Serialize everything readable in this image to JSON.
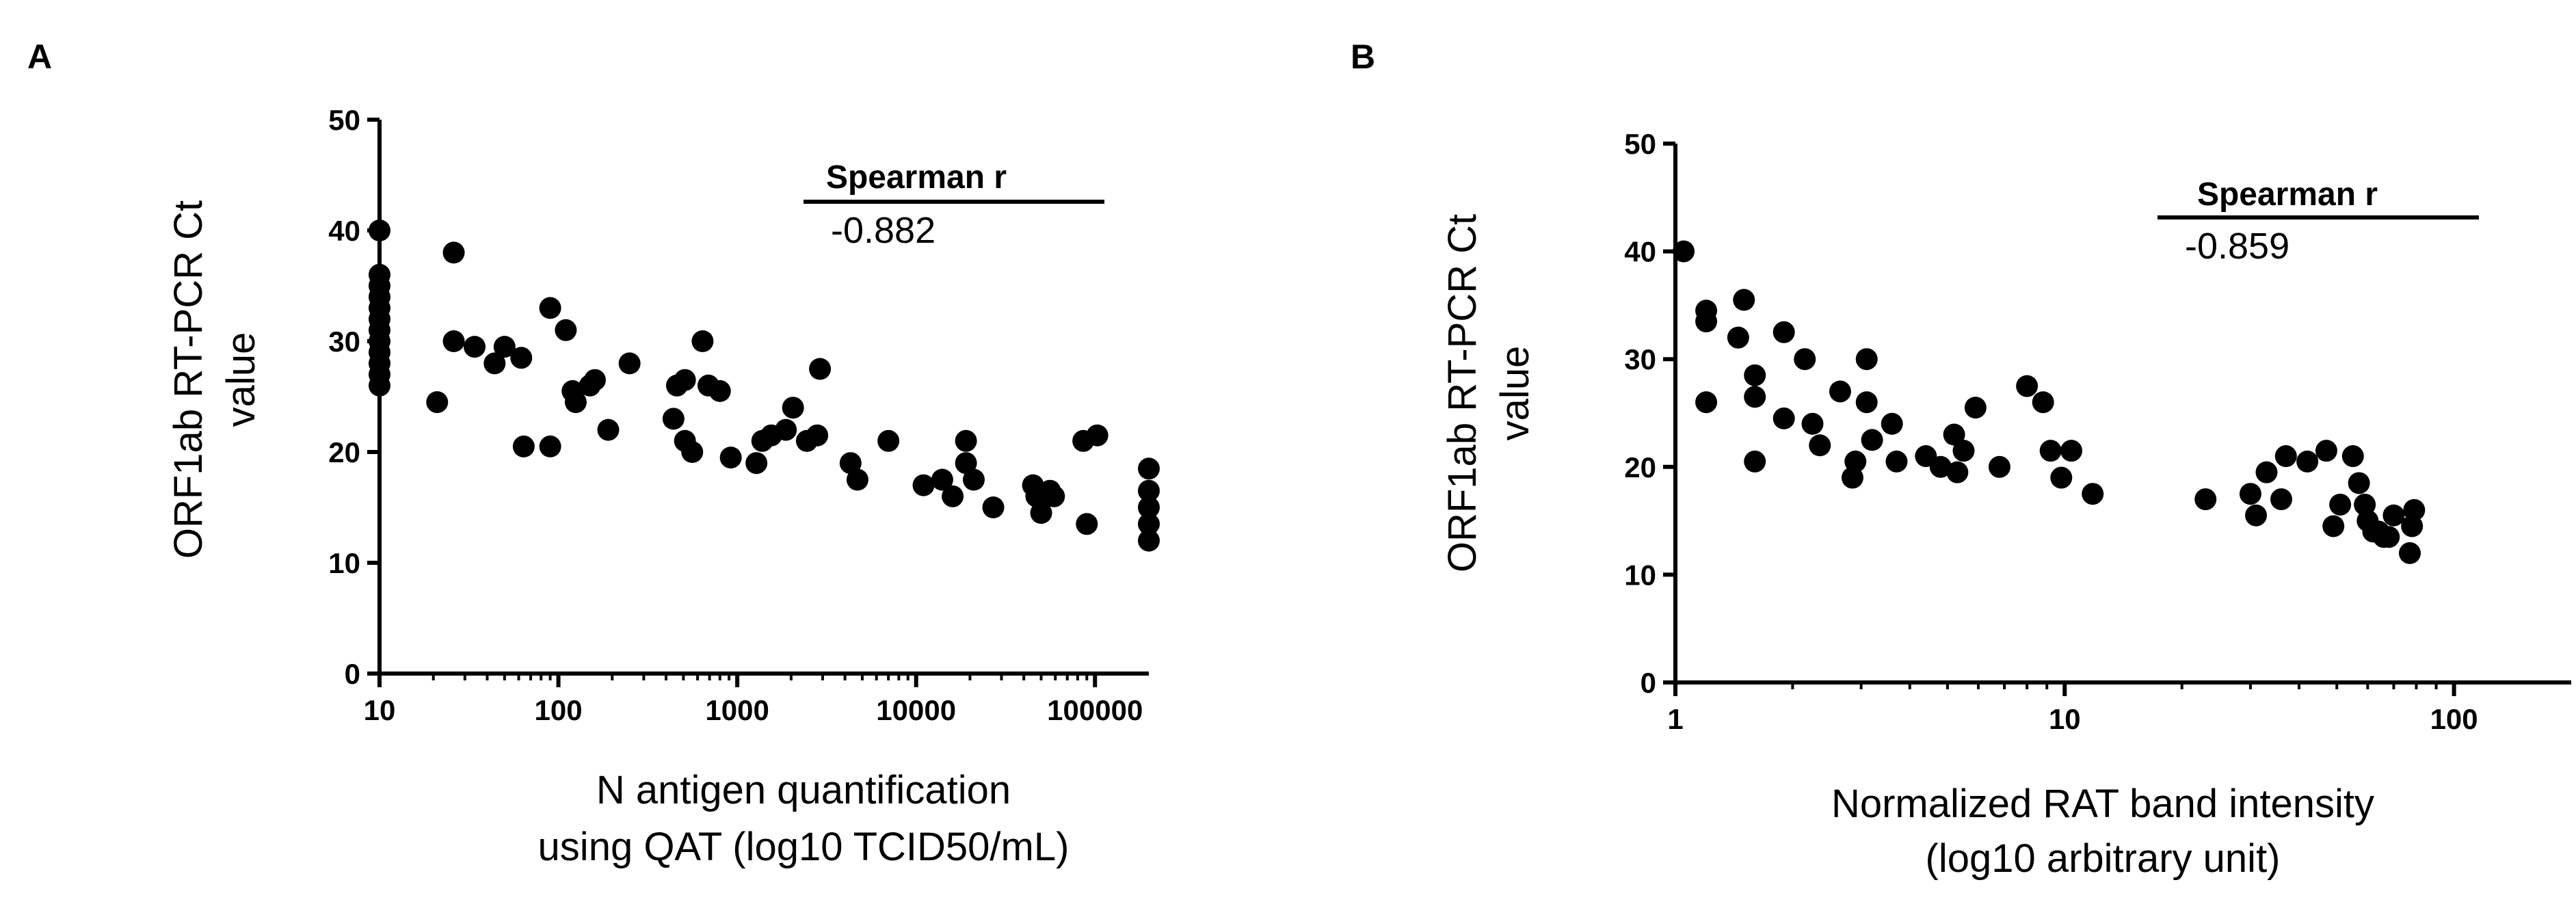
{
  "colors": {
    "marker": "#000000",
    "axis": "#000000",
    "background": "#ffffff"
  },
  "chart_data": [
    {
      "type": "scatter",
      "panel": "A",
      "xlabel_lines": [
        "N antigen quantification",
        "using QAT (log10 TCID50/mL)"
      ],
      "ylabel_lines": [
        "ORF1ab RT-PCR Ct",
        "value"
      ],
      "x_scale": "log",
      "xlim": [
        10,
        200000
      ],
      "ylim": [
        0,
        50
      ],
      "x_ticks": [
        10,
        100,
        1000,
        10000,
        100000
      ],
      "x_tick_labels": [
        "10",
        "100",
        "1000",
        "10000",
        "100000"
      ],
      "y_ticks": [
        0,
        10,
        20,
        30,
        40,
        50
      ],
      "y_tick_labels": [
        "0",
        "10",
        "20",
        "30",
        "40",
        "50"
      ],
      "grid": false,
      "stat_header": "Spearman r",
      "stat_value": "-0.882",
      "points": [
        [
          10,
          40
        ],
        [
          10,
          36
        ],
        [
          10,
          35
        ],
        [
          10,
          34
        ],
        [
          10,
          33
        ],
        [
          10,
          32
        ],
        [
          10,
          31
        ],
        [
          10,
          30
        ],
        [
          10,
          29
        ],
        [
          10,
          28
        ],
        [
          10,
          27
        ],
        [
          10,
          26
        ],
        [
          21,
          24.5
        ],
        [
          26,
          38
        ],
        [
          26,
          30
        ],
        [
          34,
          29.5
        ],
        [
          44,
          28
        ],
        [
          50,
          29.5
        ],
        [
          62,
          28.5
        ],
        [
          64,
          20.5
        ],
        [
          90,
          33
        ],
        [
          90,
          20.5
        ],
        [
          110,
          31
        ],
        [
          120,
          25.5
        ],
        [
          125,
          24.5
        ],
        [
          150,
          26
        ],
        [
          160,
          26.5
        ],
        [
          190,
          22
        ],
        [
          250,
          28
        ],
        [
          440,
          23
        ],
        [
          460,
          26
        ],
        [
          510,
          26.5
        ],
        [
          510,
          21
        ],
        [
          560,
          20
        ],
        [
          640,
          30
        ],
        [
          690,
          26
        ],
        [
          800,
          25.5
        ],
        [
          920,
          19.5
        ],
        [
          1280,
          19
        ],
        [
          1380,
          21
        ],
        [
          1550,
          21.5
        ],
        [
          1870,
          22
        ],
        [
          2050,
          24
        ],
        [
          2450,
          21
        ],
        [
          2800,
          21.5
        ],
        [
          2900,
          27.5
        ],
        [
          4300,
          19
        ],
        [
          4700,
          17.5
        ],
        [
          7000,
          21
        ],
        [
          11000,
          17
        ],
        [
          14000,
          17.5
        ],
        [
          16000,
          16
        ],
        [
          19000,
          21
        ],
        [
          19000,
          19
        ],
        [
          21000,
          17.5
        ],
        [
          27000,
          15
        ],
        [
          45000,
          17
        ],
        [
          47000,
          16
        ],
        [
          50000,
          14.5
        ],
        [
          56000,
          16.5
        ],
        [
          59000,
          16
        ],
        [
          86000,
          21
        ],
        [
          90000,
          13.5
        ],
        [
          103000,
          21.5
        ],
        [
          200000,
          18.5
        ],
        [
          200000,
          16.5
        ],
        [
          200000,
          15
        ],
        [
          200000,
          13.5
        ],
        [
          200000,
          12
        ]
      ]
    },
    {
      "type": "scatter",
      "panel": "B",
      "xlabel_lines": [
        "Normalized RAT band intensity",
        "(log10 arbitrary unit)"
      ],
      "ylabel_lines": [
        "ORF1ab RT-PCR Ct",
        "value"
      ],
      "x_scale": "log",
      "xlim": [
        1,
        200
      ],
      "ylim": [
        0,
        50
      ],
      "x_ticks": [
        1,
        10,
        100
      ],
      "x_tick_labels": [
        "1",
        "10",
        "100"
      ],
      "y_ticks": [
        0,
        10,
        20,
        30,
        40,
        50
      ],
      "y_tick_labels": [
        "0",
        "10",
        "20",
        "30",
        "40",
        "50"
      ],
      "grid": false,
      "stat_header": "Spearman r",
      "stat_value": "-0.859",
      "points": [
        [
          1.05,
          40
        ],
        [
          1.2,
          34.5
        ],
        [
          1.2,
          33.5
        ],
        [
          1.2,
          26
        ],
        [
          1.45,
          32
        ],
        [
          1.5,
          35.5
        ],
        [
          1.6,
          28.5
        ],
        [
          1.6,
          26.5
        ],
        [
          1.6,
          20.5
        ],
        [
          1.9,
          32.5
        ],
        [
          1.9,
          24.5
        ],
        [
          2.15,
          30
        ],
        [
          2.25,
          24
        ],
        [
          2.35,
          22
        ],
        [
          2.65,
          27
        ],
        [
          2.85,
          19
        ],
        [
          2.9,
          20.5
        ],
        [
          3.1,
          30
        ],
        [
          3.1,
          26
        ],
        [
          3.2,
          22.5
        ],
        [
          3.6,
          24
        ],
        [
          3.7,
          20.5
        ],
        [
          4.4,
          21
        ],
        [
          4.8,
          20
        ],
        [
          5.2,
          23
        ],
        [
          5.3,
          19.5
        ],
        [
          5.5,
          21.5
        ],
        [
          5.9,
          25.5
        ],
        [
          6.8,
          20
        ],
        [
          8,
          27.5
        ],
        [
          8.8,
          26
        ],
        [
          9.2,
          21.5
        ],
        [
          9.8,
          19
        ],
        [
          10.4,
          21.5
        ],
        [
          11.8,
          17.5
        ],
        [
          23,
          17
        ],
        [
          30,
          17.5
        ],
        [
          31,
          15.5
        ],
        [
          33,
          19.5
        ],
        [
          36,
          17
        ],
        [
          37,
          21
        ],
        [
          42,
          20.5
        ],
        [
          47,
          21.5
        ],
        [
          49,
          14.5
        ],
        [
          51,
          16.5
        ],
        [
          55,
          21
        ],
        [
          57,
          18.5
        ],
        [
          59,
          16.5
        ],
        [
          60,
          15
        ],
        [
          62,
          14
        ],
        [
          64,
          14
        ],
        [
          66,
          13.5
        ],
        [
          68,
          13.5
        ],
        [
          70,
          15.5
        ],
        [
          77,
          12
        ],
        [
          78,
          14.5
        ],
        [
          79,
          16
        ]
      ]
    }
  ]
}
